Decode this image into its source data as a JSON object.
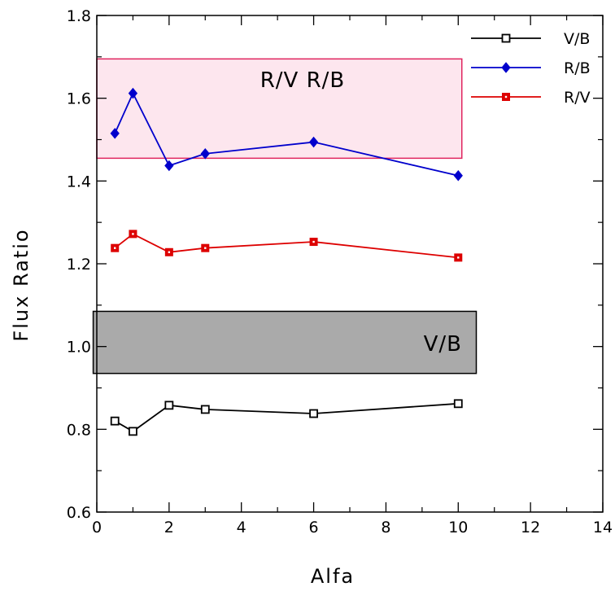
{
  "chart_data": {
    "type": "line",
    "xlabel": "Alfa",
    "ylabel": "Flux Ratio",
    "xlim": [
      0,
      14
    ],
    "ylim": [
      0.6,
      1.8
    ],
    "x_ticks": [
      "0",
      "2",
      "4",
      "6",
      "8",
      "10",
      "12",
      "14"
    ],
    "y_ticks": [
      "0.6",
      "0.8",
      "1.0",
      "1.2",
      "1.4",
      "1.6",
      "1.8"
    ],
    "grid": false,
    "legend_position": "top-right",
    "series": [
      {
        "name": "V/B",
        "color": "#000000",
        "marker": "open-square",
        "x": [
          0.5,
          1,
          2,
          3,
          6,
          10
        ],
        "y": [
          0.82,
          0.795,
          0.858,
          0.848,
          0.838,
          0.862
        ]
      },
      {
        "name": "R/B",
        "color": "#0000cc",
        "marker": "diamond",
        "x": [
          0.5,
          1,
          2,
          3,
          6,
          10
        ],
        "y": [
          1.515,
          1.612,
          1.437,
          1.466,
          1.494,
          1.413
        ]
      },
      {
        "name": "R/V",
        "color": "#dd0000",
        "marker": "filled-square",
        "x": [
          0.5,
          1,
          2,
          3,
          6,
          10
        ],
        "y": [
          1.238,
          1.272,
          1.228,
          1.238,
          1.253,
          1.215
        ]
      }
    ],
    "bands": [
      {
        "label": "R/V   R/B",
        "x": [
          0.0,
          10.1
        ],
        "y": [
          1.455,
          1.695
        ],
        "fill": "#fde6ee",
        "stroke": "#e0245e"
      },
      {
        "label": "V/B",
        "x": [
          -0.1,
          10.5
        ],
        "y": [
          0.935,
          1.085
        ],
        "fill": "#aaaaaa",
        "stroke": "#000000"
      }
    ]
  }
}
